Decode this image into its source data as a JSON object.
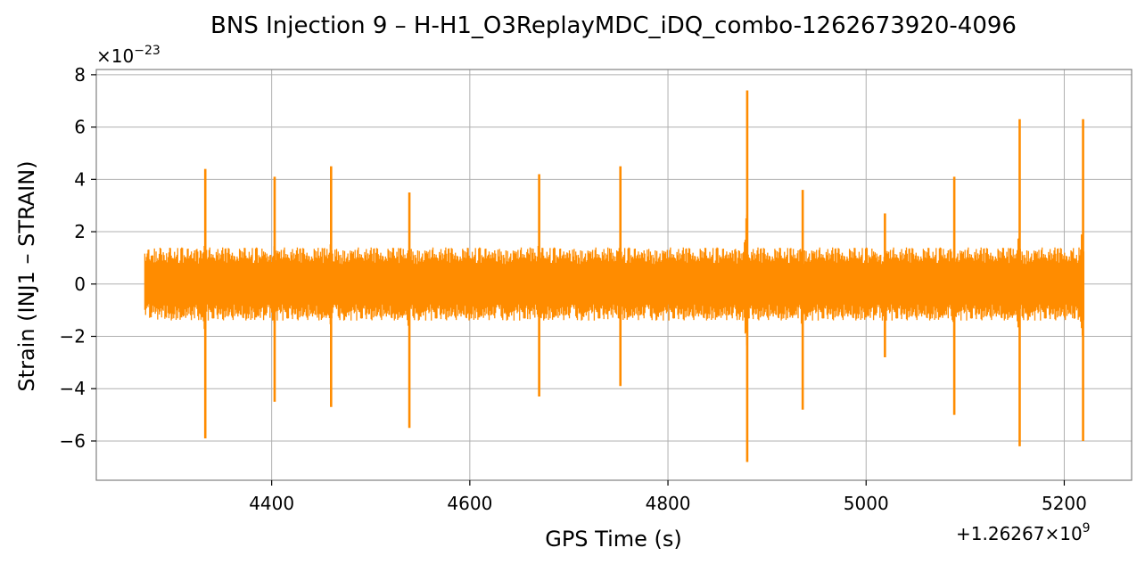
{
  "chart_data": {
    "type": "line",
    "title": "BNS Injection 9 – H-H1_O3ReplayMDC_iDQ_combo-1262673920-4096",
    "xlabel": "GPS Time (s)",
    "ylabel": "Strain (INJ1 – STRAIN)",
    "x_offset_label": "+1.26267×10",
    "x_offset_exp": "9",
    "y_scale_label": "×10",
    "y_scale_exp": "−23",
    "xlim": [
      4223,
      5268
    ],
    "ylim": [
      -7.5,
      8.2
    ],
    "x_ticks": [
      4400,
      4600,
      4800,
      5000,
      5200
    ],
    "x_tick_labels": [
      "4400",
      "4600",
      "4800",
      "5000",
      "5200"
    ],
    "y_ticks": [
      -6,
      -4,
      -2,
      0,
      2,
      4,
      6,
      8
    ],
    "y_tick_labels": [
      "−6",
      "−4",
      "−2",
      "0",
      "2",
      "4",
      "6",
      "8"
    ],
    "grid": true,
    "color": "#ff8c00",
    "x_range": [
      4272,
      5220
    ],
    "noise_band": {
      "upper": 1.4,
      "lower": -1.4
    },
    "series": [
      {
        "x": [
          4333,
          4403,
          4460,
          4539,
          4670,
          4752,
          4880,
          4936,
          5019,
          5089,
          5155,
          5219
        ],
        "peak_high": [
          4.4,
          4.1,
          4.5,
          3.5,
          4.2,
          4.5,
          7.4,
          3.6,
          2.7,
          4.1,
          6.3,
          6.3
        ],
        "peak_low": [
          -5.9,
          -4.5,
          -4.7,
          -5.5,
          -4.3,
          -3.9,
          -6.8,
          -4.8,
          -2.8,
          -5.0,
          -6.2,
          -6.0
        ]
      }
    ]
  }
}
